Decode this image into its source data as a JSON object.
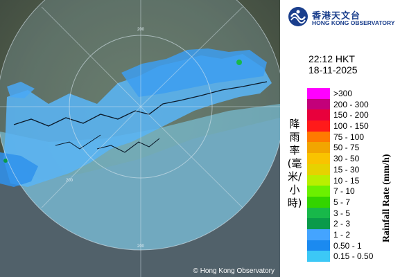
{
  "header": {
    "org_name_zh": "香港天文台",
    "org_name_en": "HONG KONG OBSERVATORY"
  },
  "observation": {
    "time": "22:12 HKT",
    "date": "18-11-2025"
  },
  "axis_labels": {
    "zh": "降雨率(毫米/小時)",
    "en": "Rainfall Rate (mm/h)"
  },
  "legend": [
    {
      "range": ">300",
      "color": "#ff00ff"
    },
    {
      "range": "200 - 300",
      "color": "#c3007a"
    },
    {
      "range": "150 - 200",
      "color": "#e8003c"
    },
    {
      "range": "100 - 150",
      "color": "#ff1a1a"
    },
    {
      "range": "75 - 100",
      "color": "#ff7a00"
    },
    {
      "range": "50 - 75",
      "color": "#f2a500"
    },
    {
      "range": "30 - 50",
      "color": "#f9c300"
    },
    {
      "range": "15 - 30",
      "color": "#e6d200"
    },
    {
      "range": "10 - 15",
      "color": "#b9ef00"
    },
    {
      "range": "7 - 10",
      "color": "#6cf000"
    },
    {
      "range": "5 - 7",
      "color": "#33d400"
    },
    {
      "range": "3 - 5",
      "color": "#18b84a"
    },
    {
      "range": "2 - 3",
      "color": "#0a9a4a"
    },
    {
      "range": "1 - 2",
      "color": "#44a4ff"
    },
    {
      "range": "0.50 - 1",
      "color": "#1b8af0"
    },
    {
      "range": "0.15 - 0.50",
      "color": "#3cc8f6"
    }
  ],
  "map": {
    "range_ring_labels": [
      "200",
      "200",
      "200"
    ],
    "copyright": "© Hong Kong Observatory"
  }
}
